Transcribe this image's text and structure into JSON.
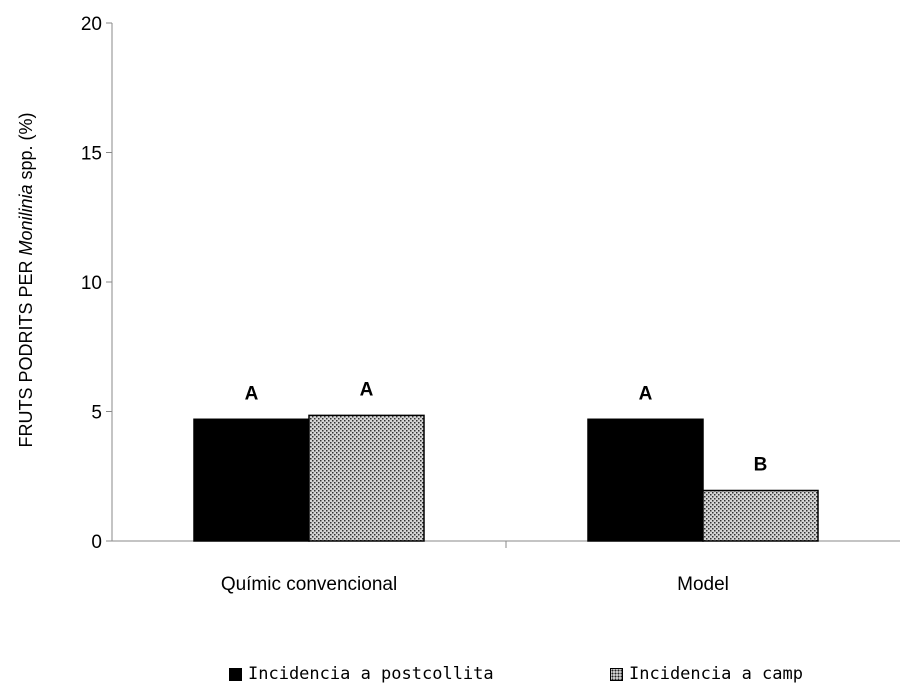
{
  "chart_data": {
    "type": "bar",
    "categories": [
      "Químic convencional",
      "Model"
    ],
    "series": [
      {
        "name": "Incidencia a postcollita",
        "values": [
          4.7,
          4.7
        ],
        "letters": [
          "A",
          "A"
        ],
        "color": "#000000",
        "pattern": "solid"
      },
      {
        "name": "Incidencia a camp",
        "values": [
          4.85,
          1.95
        ],
        "letters": [
          "A",
          "B"
        ],
        "color": "#cfcfcf",
        "pattern": "stipple"
      }
    ],
    "ylabel_parts": {
      "before": "FRUTS PODRITS PER ",
      "italic": "Monilinia",
      "after": " spp. (%)"
    },
    "ylim": [
      0,
      20
    ],
    "yticks": [
      0,
      5,
      10,
      15,
      20
    ],
    "grid": false,
    "legend_position": "bottom"
  }
}
